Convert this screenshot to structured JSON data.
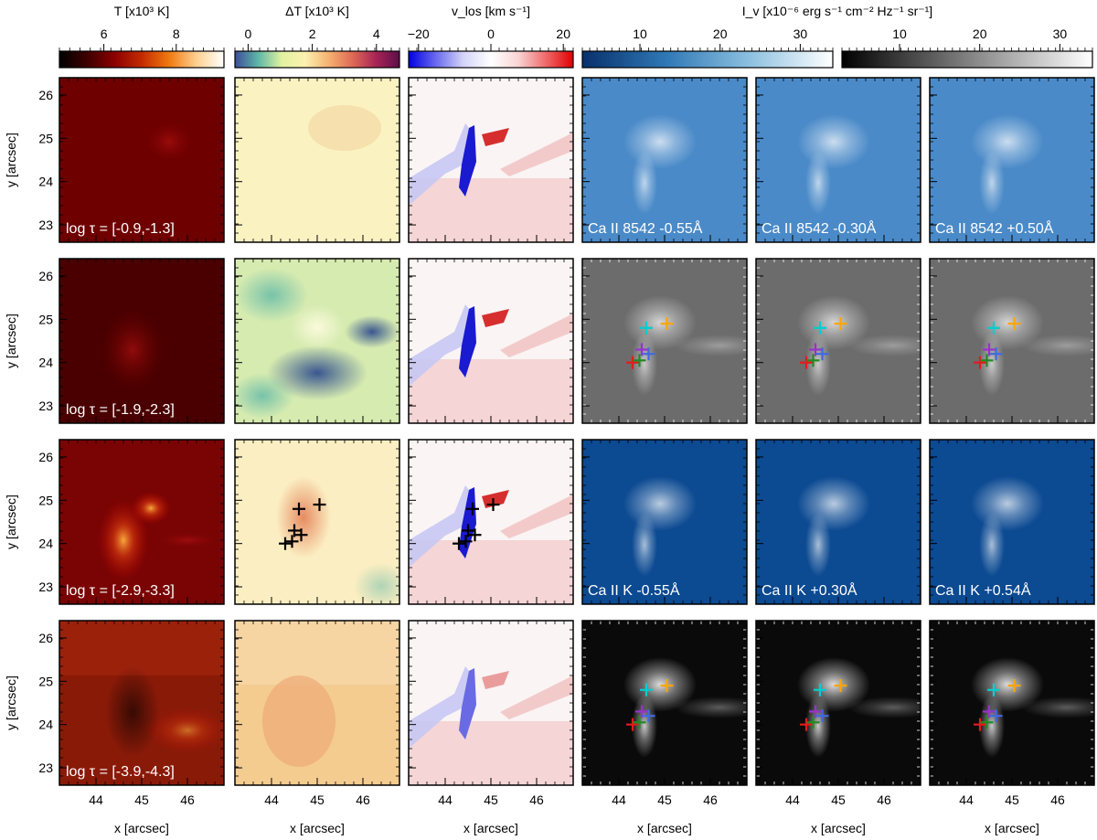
{
  "colorbars": [
    {
      "label": "T [x10³ K]",
      "ticks": [
        "6",
        "8"
      ],
      "colors": [
        "#000000",
        "#3d0000",
        "#8a0000",
        "#c42a00",
        "#f07a10",
        "#ffd090",
        "#ffffff"
      ]
    },
    {
      "label": "ΔT [x10³ K]",
      "ticks": [
        "0",
        "2",
        "4"
      ],
      "colors": [
        "#3e4d9a",
        "#5fb8a8",
        "#e2f2a0",
        "#fcf1b0",
        "#f5b070",
        "#df6a55",
        "#a82456",
        "#5c0e4a"
      ]
    },
    {
      "label": "v_los [km s⁻¹]",
      "ticks": [
        "−20",
        "0",
        "20"
      ],
      "colors": [
        "#0000e0",
        "#6a6af0",
        "#d4d4f8",
        "#ffffff",
        "#f8d4d4",
        "#f06a6a",
        "#e00000"
      ]
    },
    {
      "label": "I_v [x10⁻⁶ erg s⁻¹ cm⁻² Hz⁻¹ sr⁻¹]",
      "ticks": [
        "10",
        "20",
        "30",
        "10",
        "20",
        "30"
      ],
      "colors_blue": [
        "#08306b",
        "#2f78b5",
        "#8cc0e0",
        "#ffffff"
      ],
      "colors_gray": [
        "#000000",
        "#808080",
        "#ffffff"
      ]
    }
  ],
  "rows": [
    {
      "tau_label": "log τ = [-0.9,-1.3]",
      "line_labels": [
        "Ca II 8542 -0.55Å",
        "Ca II 8542 -0.30Å",
        "Ca II 8542 +0.50Å"
      ]
    },
    {
      "tau_label": "log τ = [-1.9,-2.3]",
      "line_labels": [
        "",
        "",
        ""
      ]
    },
    {
      "tau_label": "log τ = [-2.9,-3.3]",
      "line_labels": [
        "Ca II K -0.55Å",
        "Ca II K +0.30Å",
        "Ca II K +0.54Å"
      ]
    },
    {
      "tau_label": "log τ = [-3.9,-4.3]",
      "line_labels": [
        "",
        "",
        ""
      ]
    }
  ],
  "axes": {
    "xlabel": "x [arcsec]",
    "ylabel": "y [arcsec]",
    "x_ticks": [
      "44",
      "45",
      "46"
    ],
    "y_ticks": [
      "23",
      "24",
      "25",
      "26"
    ]
  },
  "chart_data": {
    "type": "scatter",
    "xlabel": "x [arcsec]",
    "ylabel": "y [arcsec]",
    "xlim": [
      43.2,
      46.8
    ],
    "ylim": [
      22.6,
      26.4
    ],
    "markers": [
      {
        "color": "#e41a1c",
        "x": 44.3,
        "y": 24.0
      },
      {
        "color": "#228b22",
        "x": 44.45,
        "y": 24.05
      },
      {
        "color": "#9932cc",
        "x": 44.5,
        "y": 24.3
      },
      {
        "color": "#4169e1",
        "x": 44.65,
        "y": 24.2
      },
      {
        "color": "#00ced1",
        "x": 44.6,
        "y": 24.8
      },
      {
        "color": "#ffa500",
        "x": 45.05,
        "y": 24.9
      }
    ]
  }
}
